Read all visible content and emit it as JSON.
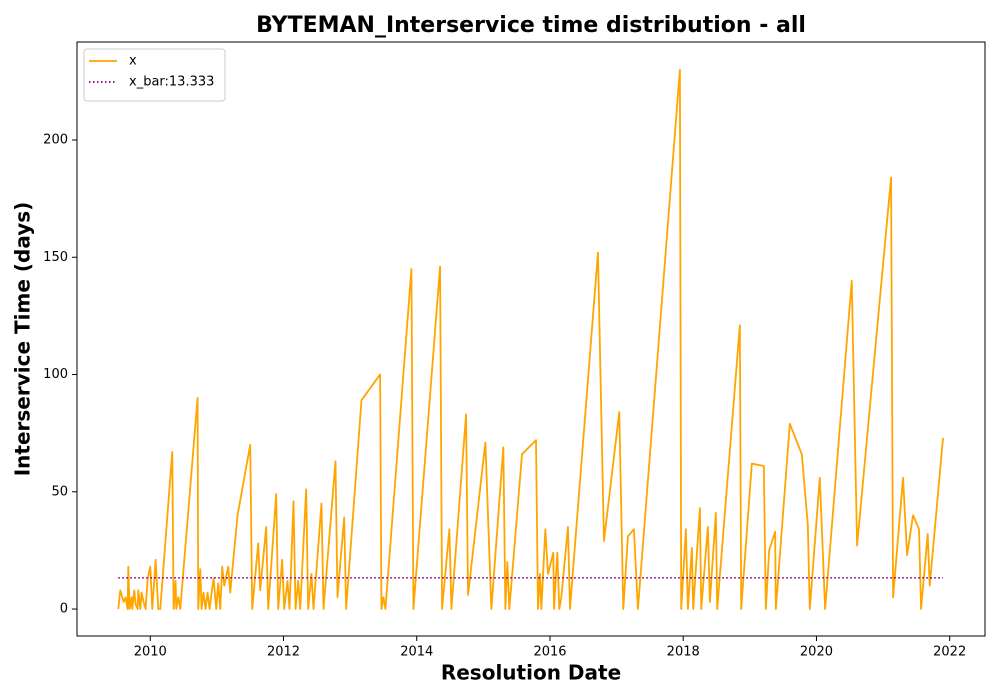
{
  "chart_data": {
    "type": "line",
    "title": "BYTEMAN_Interservice time distribution - all",
    "x_label": "Resolution Date",
    "y_label": "Interservice Time (days)",
    "xlim": [
      2008.9,
      2022.53
    ],
    "ylim": [
      -11.5,
      241.8
    ],
    "xticks": [
      2010,
      2012,
      2014,
      2016,
      2018,
      2020,
      2022
    ],
    "yticks": [
      0,
      50,
      100,
      150,
      200
    ],
    "legend": "upper left",
    "series": [
      {
        "name": "x",
        "color": "#ffa500",
        "style": "solid",
        "x": [
          2009.52,
          2009.55,
          2009.6,
          2009.63,
          2009.66,
          2009.67,
          2009.69,
          2009.72,
          2009.73,
          2009.76,
          2009.78,
          2009.81,
          2009.82,
          2009.85,
          2009.87,
          2009.9,
          2009.93,
          2009.96,
          2010.0,
          2010.03,
          2010.08,
          2010.12,
          2010.15,
          2010.33,
          2010.35,
          2010.38,
          2010.39,
          2010.42,
          2010.45,
          2010.71,
          2010.72,
          2010.75,
          2010.77,
          2010.8,
          2010.83,
          2010.86,
          2010.89,
          2010.92,
          2010.95,
          2010.99,
          2011.02,
          2011.05,
          2011.08,
          2011.11,
          2011.17,
          2011.2,
          2011.31,
          2011.5,
          2011.53,
          2011.62,
          2011.65,
          2011.74,
          2011.77,
          2011.89,
          2011.92,
          2011.98,
          2012.01,
          2012.06,
          2012.09,
          2012.15,
          2012.18,
          2012.22,
          2012.25,
          2012.34,
          2012.37,
          2012.42,
          2012.45,
          2012.57,
          2012.6,
          2012.78,
          2012.81,
          2012.91,
          2012.94,
          2013.17,
          2013.45,
          2013.47,
          2013.5,
          2013.53,
          2013.92,
          2013.95,
          2014.35,
          2014.38,
          2014.49,
          2014.52,
          2014.74,
          2014.77,
          2015.03,
          2015.12,
          2015.3,
          2015.33,
          2015.36,
          2015.39,
          2015.58,
          2015.79,
          2015.82,
          2015.85,
          2015.87,
          2015.93,
          2015.97,
          2016.05,
          2016.06,
          2016.11,
          2016.14,
          2016.17,
          2016.27,
          2016.3,
          2016.72,
          2016.81,
          2017.04,
          2017.1,
          2017.17,
          2017.26,
          2017.32,
          2017.95,
          2017.97,
          2018.04,
          2018.07,
          2018.13,
          2018.15,
          2018.25,
          2018.27,
          2018.37,
          2018.4,
          2018.49,
          2018.51,
          2018.85,
          2018.87,
          2019.03,
          2019.21,
          2019.24,
          2019.29,
          2019.38,
          2019.39,
          2019.6,
          2019.78,
          2019.87,
          2019.9,
          2020.05,
          2020.13,
          2020.53,
          2020.61,
          2021.12,
          2021.15,
          2021.3,
          2021.36,
          2021.45,
          2021.54,
          2021.57,
          2021.67,
          2021.7,
          2021.9
        ],
        "values": [
          0,
          8,
          3,
          5,
          0,
          18,
          0,
          5,
          0,
          8,
          2,
          0,
          8,
          0,
          7,
          3,
          0,
          13,
          18,
          0,
          21,
          0,
          0,
          67,
          0,
          12,
          0,
          5,
          0,
          90,
          0,
          17,
          0,
          7,
          0,
          7,
          0,
          7,
          13,
          0,
          11,
          0,
          18,
          10,
          18,
          7,
          40,
          70,
          0,
          28,
          8,
          35,
          0,
          49,
          0,
          21,
          0,
          12,
          0,
          46,
          0,
          12,
          0,
          51,
          0,
          15,
          0,
          45,
          0,
          63,
          5,
          39,
          0,
          89,
          100,
          0,
          5,
          0,
          145,
          0,
          146,
          0,
          34,
          0,
          83,
          6,
          71,
          0,
          69,
          0,
          20,
          0,
          66,
          72,
          0,
          15,
          0,
          34,
          15,
          24,
          0,
          24,
          0,
          5,
          35,
          0,
          152,
          29,
          84,
          0,
          31,
          34,
          0,
          230,
          0,
          34,
          0,
          26,
          0,
          43,
          0,
          35,
          3,
          41,
          0,
          121,
          0,
          62,
          61,
          0,
          25,
          33,
          0,
          79,
          66,
          36,
          0,
          56,
          0,
          140,
          27,
          184,
          5,
          56,
          23,
          40,
          34,
          0,
          32,
          10,
          73
        ]
      },
      {
        "name": "x_bar:13.333",
        "color": "#800080",
        "style": "dotted",
        "x": [
          2009.52,
          2021.9
        ],
        "values": [
          13.333,
          13.333
        ]
      }
    ]
  }
}
